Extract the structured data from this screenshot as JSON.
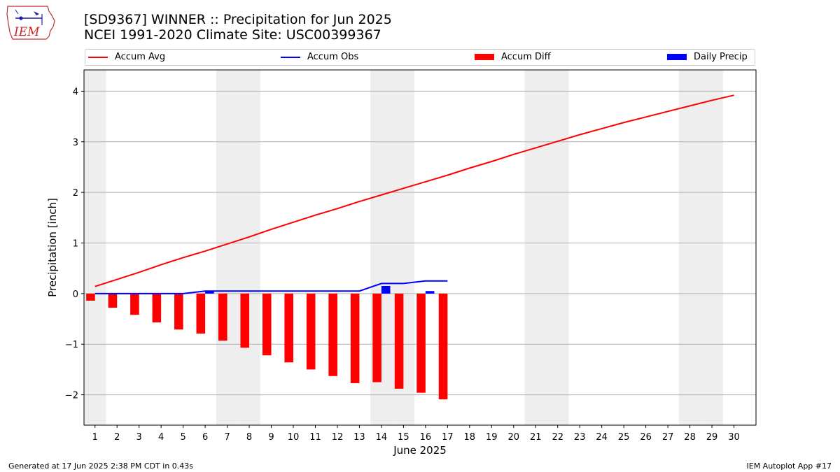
{
  "header": {
    "title": "[SD9367] WINNER :: Precipitation for Jun 2025",
    "subtitle": "NCEI 1991-2020 Climate Site: USC00399367"
  },
  "logo": {
    "text": "IEM",
    "icon": "iem-iowa-logo-icon"
  },
  "legend": {
    "placement": "top",
    "items": [
      {
        "label": "Accum Avg",
        "kind": "line",
        "color": "#ff0000"
      },
      {
        "label": "Accum Obs",
        "kind": "line",
        "color": "#0000ff"
      },
      {
        "label": "Accum Diff",
        "kind": "bar",
        "color": "#ff0000"
      },
      {
        "label": "Daily Precip",
        "kind": "bar",
        "color": "#0000ff"
      }
    ]
  },
  "chart_data": {
    "type": "bar",
    "xlabel": "June 2025",
    "ylabel": "Precipitation [inch]",
    "xlim": [
      0.5,
      31
    ],
    "ylim": [
      -2.6,
      4.42
    ],
    "x_ticks": [
      "1",
      "2",
      "3",
      "4",
      "5",
      "6",
      "7",
      "8",
      "9",
      "10",
      "11",
      "12",
      "13",
      "14",
      "15",
      "16",
      "17",
      "18",
      "19",
      "20",
      "21",
      "22",
      "23",
      "24",
      "25",
      "26",
      "27",
      "28",
      "29",
      "30"
    ],
    "y_ticks": [
      -2,
      -1,
      0,
      1,
      2,
      3,
      4
    ],
    "y_tick_labels": [
      "−2",
      "−1",
      "0",
      "1",
      "2",
      "3",
      "4"
    ],
    "grid": "horizontal",
    "weekend_days": [
      1,
      7,
      8,
      14,
      15,
      21,
      22,
      28,
      29
    ],
    "weekend_color": "#eeeeee",
    "series": [
      {
        "name": "Accum Avg",
        "type": "line",
        "color": "#ff0000",
        "x": [
          1,
          2,
          3,
          4,
          5,
          6,
          7,
          8,
          9,
          10,
          11,
          12,
          13,
          14,
          15,
          16,
          17,
          18,
          19,
          20,
          21,
          22,
          23,
          24,
          25,
          26,
          27,
          28,
          29,
          30
        ],
        "values": [
          0.14,
          0.28,
          0.42,
          0.57,
          0.71,
          0.84,
          0.98,
          1.12,
          1.27,
          1.41,
          1.55,
          1.68,
          1.82,
          1.95,
          2.08,
          2.21,
          2.34,
          2.48,
          2.61,
          2.75,
          2.88,
          3.01,
          3.14,
          3.26,
          3.38,
          3.49,
          3.6,
          3.71,
          3.82,
          3.92
        ]
      },
      {
        "name": "Accum Obs",
        "type": "line",
        "color": "#0000ff",
        "x": [
          1,
          2,
          3,
          4,
          5,
          6,
          7,
          8,
          9,
          10,
          11,
          12,
          13,
          14,
          15,
          16,
          17
        ],
        "values": [
          0,
          0,
          0,
          0,
          0,
          0.05,
          0.05,
          0.05,
          0.05,
          0.05,
          0.05,
          0.05,
          0.05,
          0.2,
          0.2,
          0.25,
          0.25
        ]
      },
      {
        "name": "Accum Diff",
        "type": "bar",
        "color": "#ff0000",
        "x": [
          1,
          2,
          3,
          4,
          5,
          6,
          7,
          8,
          9,
          10,
          11,
          12,
          13,
          14,
          15,
          16,
          17
        ],
        "values": [
          -0.14,
          -0.28,
          -0.42,
          -0.57,
          -0.71,
          -0.79,
          -0.93,
          -1.07,
          -1.22,
          -1.36,
          -1.5,
          -1.63,
          -1.77,
          -1.75,
          -1.88,
          -1.96,
          -2.09
        ]
      },
      {
        "name": "Daily Precip",
        "type": "bar",
        "color": "#0000ff",
        "x": [
          6,
          14,
          16
        ],
        "values": [
          0.05,
          0.15,
          0.05
        ]
      }
    ]
  },
  "footer": {
    "left": "Generated at 17 Jun 2025 2:38 PM CDT in 0.43s",
    "right": "IEM Autoplot App #17"
  }
}
